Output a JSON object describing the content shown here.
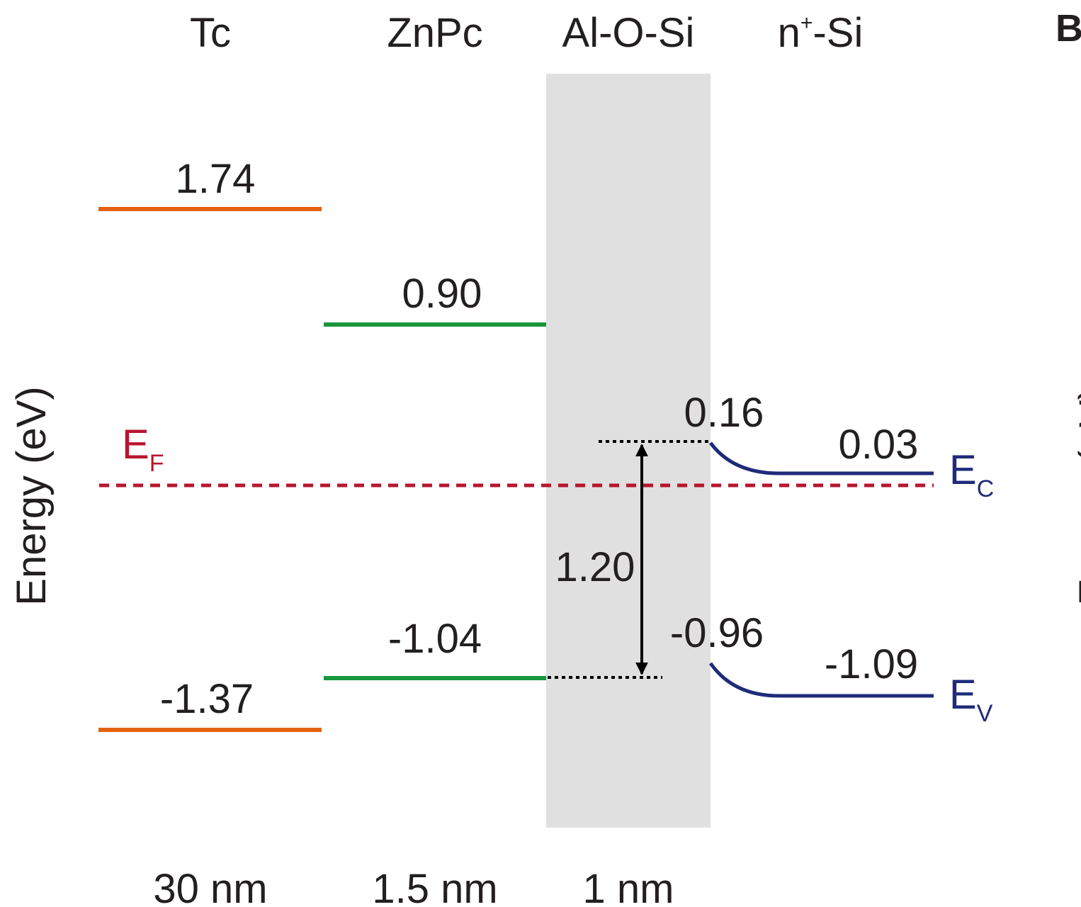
{
  "colors": {
    "text": "#231f20",
    "tc_level": "#e4610f",
    "znpc_level": "#17963c",
    "fermi": "#b7162e",
    "si_band": "#1f2b7a",
    "oxide_fill": "#e0e0e0",
    "arrow": "#000000"
  },
  "layers": [
    {
      "name": "Tc",
      "thickness": "30 nm"
    },
    {
      "name": "ZnPc",
      "thickness": "1.5 nm"
    },
    {
      "name": "Al-O-Si",
      "thickness": "1 nm"
    },
    {
      "name_base": "n",
      "name_sup": "+",
      "name_rest": "-Si"
    }
  ],
  "energy_axis_label": "Energy (eV)",
  "panel_letter": "B",
  "levels": {
    "tc_lumo": "1.74",
    "tc_homo": "-1.37",
    "znpc_lumo": "0.90",
    "znpc_homo": "-1.04",
    "interface_ec": "0.16",
    "interface_ev": "-0.96",
    "bulk_ec": "0.03",
    "bulk_ev": "-1.09",
    "gap_offset": "1.20"
  },
  "band_labels": {
    "fermi": {
      "main": "E",
      "sub": "F"
    },
    "conduction": {
      "main": "E",
      "sub": "C"
    },
    "valence": {
      "main": "E",
      "sub": "V"
    }
  }
}
